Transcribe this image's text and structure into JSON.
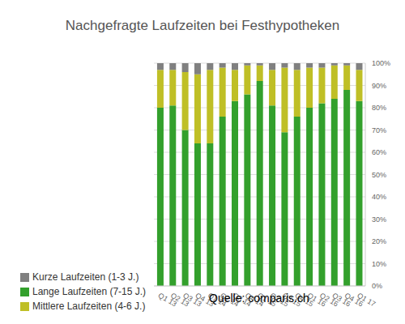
{
  "chart_data": {
    "type": "bar",
    "title": "Nachgefragte Laufzeiten bei Festhypotheken",
    "categories": [
      "Q1 13",
      "Q2 13",
      "Q3 13",
      "Q4 13",
      "Q1 14",
      "Q2 14",
      "Q3 14",
      "Q4 14",
      "Q1 15",
      "Q2 15",
      "Q3 15",
      "Q4 15",
      "Q1 16",
      "Q2 16",
      "Q3 16",
      "Q4 16",
      "Q1 17"
    ],
    "series": [
      {
        "name": "Lange Laufzeiten (7-15 J.)",
        "color": "#33a02c",
        "values": [
          80,
          81,
          70,
          64,
          64,
          76,
          83,
          86,
          92,
          81,
          69,
          76,
          80,
          82,
          84,
          88,
          83
        ]
      },
      {
        "name": "Mittlere Laufzeiten (4-6 J.)",
        "color": "#bfbf26",
        "values": [
          17,
          16,
          26,
          31,
          33,
          22,
          14,
          13,
          7,
          16,
          29,
          21,
          18,
          16,
          15,
          11,
          14
        ]
      },
      {
        "name": "Kurze Laufzeiten (1-3 J.)",
        "color": "#808080",
        "values": [
          3,
          3,
          4,
          5,
          3,
          2,
          3,
          1,
          1,
          3,
          2,
          3,
          2,
          2,
          1,
          1,
          3
        ]
      }
    ],
    "ylim": [
      0,
      100
    ],
    "yticks": [
      {
        "value": 0,
        "label": "0%"
      },
      {
        "value": 10,
        "label": "10%"
      },
      {
        "value": 20,
        "label": "20%"
      },
      {
        "value": 30,
        "label": "30%"
      },
      {
        "value": 40,
        "label": "40%"
      },
      {
        "value": 50,
        "label": "50%"
      },
      {
        "value": 60,
        "label": "60%"
      },
      {
        "value": 70,
        "label": "70%"
      },
      {
        "value": 80,
        "label": "80%"
      },
      {
        "value": 90,
        "label": "90%"
      },
      {
        "value": 100,
        "label": "100%"
      }
    ],
    "stacked": true,
    "grid": true,
    "legend": "bottom-left",
    "annotations": [
      "Quelle: comparis.ch"
    ]
  }
}
